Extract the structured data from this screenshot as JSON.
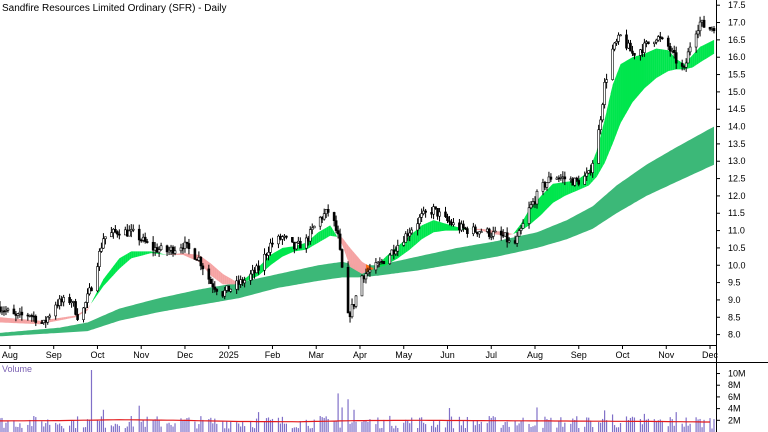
{
  "chart_data": [
    {
      "type": "ohlc",
      "title": "Sandfire Resources Limited Ordinary (SFR) - Daily",
      "y_ticks": [
        "17.5",
        "17.0",
        "16.5",
        "16.0",
        "15.5",
        "15.0",
        "14.5",
        "14.0",
        "13.5",
        "13.0",
        "12.5",
        "12.0",
        "11.5",
        "11.0",
        "10.5",
        "10.0",
        "9.5",
        "9.0",
        "8.5",
        "8.0"
      ],
      "ylim": [
        7.7,
        17.65
      ],
      "x_ticks": [
        "Aug",
        "Sep",
        "Oct",
        "Nov",
        "Dec",
        "2025",
        "Feb",
        "Mar",
        "Apr",
        "May",
        "Jun",
        "Jul",
        "Aug",
        "Sep",
        "Oct",
        "Nov",
        "Dec"
      ],
      "price_path": [
        {
          "d": 0,
          "v": 8.8
        },
        {
          "d": 8,
          "v": 8.5
        },
        {
          "d": 15,
          "v": 8.6
        },
        {
          "d": 22,
          "v": 8.3
        },
        {
          "d": 28,
          "v": 8.9
        },
        {
          "d": 36,
          "v": 9.0
        },
        {
          "d": 40,
          "v": 8.4
        },
        {
          "d": 46,
          "v": 9.4
        },
        {
          "d": 52,
          "v": 10.8
        },
        {
          "d": 60,
          "v": 11.0
        },
        {
          "d": 68,
          "v": 10.9
        },
        {
          "d": 76,
          "v": 10.5
        },
        {
          "d": 84,
          "v": 10.4
        },
        {
          "d": 92,
          "v": 10.6
        },
        {
          "d": 100,
          "v": 10.2
        },
        {
          "d": 106,
          "v": 9.5
        },
        {
          "d": 112,
          "v": 9.2
        },
        {
          "d": 118,
          "v": 9.4
        },
        {
          "d": 124,
          "v": 9.6
        },
        {
          "d": 130,
          "v": 9.9
        },
        {
          "d": 136,
          "v": 10.6
        },
        {
          "d": 142,
          "v": 10.8
        },
        {
          "d": 148,
          "v": 10.5
        },
        {
          "d": 154,
          "v": 10.7
        },
        {
          "d": 160,
          "v": 11.3
        },
        {
          "d": 166,
          "v": 11.6
        },
        {
          "d": 170,
          "v": 10.8
        },
        {
          "d": 175,
          "v": 8.5
        },
        {
          "d": 178,
          "v": 8.9
        },
        {
          "d": 182,
          "v": 9.7
        },
        {
          "d": 188,
          "v": 9.9
        },
        {
          "d": 194,
          "v": 10.2
        },
        {
          "d": 200,
          "v": 10.6
        },
        {
          "d": 206,
          "v": 11.0
        },
        {
          "d": 212,
          "v": 11.4
        },
        {
          "d": 218,
          "v": 11.6
        },
        {
          "d": 224,
          "v": 11.3
        },
        {
          "d": 230,
          "v": 11.1
        },
        {
          "d": 236,
          "v": 11.0
        },
        {
          "d": 242,
          "v": 11.0
        },
        {
          "d": 248,
          "v": 10.9
        },
        {
          "d": 254,
          "v": 10.8
        },
        {
          "d": 258,
          "v": 10.5
        },
        {
          "d": 262,
          "v": 11.0
        },
        {
          "d": 266,
          "v": 11.6
        },
        {
          "d": 272,
          "v": 12.2
        },
        {
          "d": 278,
          "v": 12.6
        },
        {
          "d": 284,
          "v": 12.5
        },
        {
          "d": 290,
          "v": 12.4
        },
        {
          "d": 296,
          "v": 12.6
        },
        {
          "d": 300,
          "v": 13.4
        },
        {
          "d": 304,
          "v": 15.2
        },
        {
          "d": 308,
          "v": 16.2
        },
        {
          "d": 312,
          "v": 16.6
        },
        {
          "d": 318,
          "v": 16.1
        },
        {
          "d": 324,
          "v": 16.3
        },
        {
          "d": 330,
          "v": 16.6
        },
        {
          "d": 336,
          "v": 16.3
        },
        {
          "d": 340,
          "v": 15.9
        },
        {
          "d": 344,
          "v": 15.6
        },
        {
          "d": 348,
          "v": 16.6
        },
        {
          "d": 352,
          "v": 17.0
        },
        {
          "d": 356,
          "v": 16.8
        },
        {
          "d": 359,
          "v": 16.9
        }
      ],
      "bands": [
        {
          "name": "short-term guppy band",
          "points": [
            {
              "d": 0,
              "a": 8.35,
              "b": 8.5
            },
            {
              "d": 20,
              "a": 8.3,
              "b": 8.4
            },
            {
              "d": 38,
              "a": 8.5,
              "b": 8.55
            },
            {
              "d": 44,
              "a": 8.7,
              "b": 8.75
            },
            {
              "d": 52,
              "a": 9.6,
              "b": 9.4
            },
            {
              "d": 60,
              "a": 10.2,
              "b": 9.9
            },
            {
              "d": 66,
              "a": 10.4,
              "b": 10.2
            },
            {
              "d": 76,
              "a": 10.4,
              "b": 10.35
            },
            {
              "d": 84,
              "a": 10.3,
              "b": 10.3
            },
            {
              "d": 92,
              "a": 10.3,
              "b": 10.35
            },
            {
              "d": 100,
              "a": 10.1,
              "b": 10.3
            },
            {
              "d": 106,
              "a": 9.7,
              "b": 10.05
            },
            {
              "d": 112,
              "a": 9.45,
              "b": 9.75
            },
            {
              "d": 118,
              "a": 9.45,
              "b": 9.55
            },
            {
              "d": 124,
              "a": 9.65,
              "b": 9.55
            },
            {
              "d": 130,
              "a": 9.95,
              "b": 9.7
            },
            {
              "d": 136,
              "a": 10.3,
              "b": 10.0
            },
            {
              "d": 142,
              "a": 10.5,
              "b": 10.25
            },
            {
              "d": 148,
              "a": 10.55,
              "b": 10.4
            },
            {
              "d": 154,
              "a": 10.65,
              "b": 10.45
            },
            {
              "d": 160,
              "a": 10.95,
              "b": 10.65
            },
            {
              "d": 166,
              "a": 11.15,
              "b": 10.85
            },
            {
              "d": 172,
              "a": 10.6,
              "b": 10.8
            },
            {
              "d": 176,
              "a": 9.95,
              "b": 10.5
            },
            {
              "d": 182,
              "a": 9.75,
              "b": 10.1
            },
            {
              "d": 188,
              "a": 9.9,
              "b": 9.9
            },
            {
              "d": 194,
              "a": 10.25,
              "b": 10.0
            },
            {
              "d": 200,
              "a": 10.55,
              "b": 10.2
            },
            {
              "d": 206,
              "a": 10.85,
              "b": 10.45
            },
            {
              "d": 212,
              "a": 11.15,
              "b": 10.75
            },
            {
              "d": 218,
              "a": 11.3,
              "b": 10.95
            },
            {
              "d": 224,
              "a": 11.2,
              "b": 11.0
            },
            {
              "d": 230,
              "a": 11.1,
              "b": 11.0
            },
            {
              "d": 236,
              "a": 11.05,
              "b": 11.05
            },
            {
              "d": 242,
              "a": 11.0,
              "b": 11.05
            },
            {
              "d": 248,
              "a": 10.9,
              "b": 11.0
            },
            {
              "d": 254,
              "a": 10.85,
              "b": 10.95
            },
            {
              "d": 258,
              "a": 10.9,
              "b": 10.9
            },
            {
              "d": 262,
              "a": 11.2,
              "b": 11.0
            },
            {
              "d": 266,
              "a": 11.6,
              "b": 11.15
            },
            {
              "d": 272,
              "a": 12.0,
              "b": 11.45
            },
            {
              "d": 278,
              "a": 12.35,
              "b": 11.8
            },
            {
              "d": 284,
              "a": 12.4,
              "b": 12.0
            },
            {
              "d": 290,
              "a": 12.45,
              "b": 12.15
            },
            {
              "d": 296,
              "a": 12.7,
              "b": 12.3
            },
            {
              "d": 300,
              "a": 13.3,
              "b": 12.55
            },
            {
              "d": 304,
              "a": 14.2,
              "b": 12.95
            },
            {
              "d": 308,
              "a": 15.2,
              "b": 13.5
            },
            {
              "d": 312,
              "a": 15.8,
              "b": 14.1
            },
            {
              "d": 318,
              "a": 16.0,
              "b": 14.7
            },
            {
              "d": 324,
              "a": 16.1,
              "b": 15.1
            },
            {
              "d": 330,
              "a": 16.25,
              "b": 15.4
            },
            {
              "d": 336,
              "a": 16.2,
              "b": 15.6
            },
            {
              "d": 340,
              "a": 15.95,
              "b": 15.65
            },
            {
              "d": 344,
              "a": 15.8,
              "b": 15.65
            },
            {
              "d": 348,
              "a": 16.05,
              "b": 15.7
            },
            {
              "d": 352,
              "a": 16.3,
              "b": 15.85
            },
            {
              "d": 359,
              "a": 16.5,
              "b": 16.1
            }
          ],
          "colors": {
            "up": "#00e64d",
            "down": "#f5a3a3",
            "up_alt": "#000000",
            "down_alt": "#ff6a13"
          }
        },
        {
          "name": "long-term guppy band",
          "points": [
            {
              "d": 0,
              "a": 8.05,
              "b": 7.95
            },
            {
              "d": 30,
              "a": 8.2,
              "b": 8.05
            },
            {
              "d": 44,
              "a": 8.35,
              "b": 8.1
            },
            {
              "d": 60,
              "a": 8.75,
              "b": 8.4
            },
            {
              "d": 80,
              "a": 9.05,
              "b": 8.65
            },
            {
              "d": 100,
              "a": 9.3,
              "b": 8.85
            },
            {
              "d": 120,
              "a": 9.5,
              "b": 9.05
            },
            {
              "d": 140,
              "a": 9.75,
              "b": 9.35
            },
            {
              "d": 160,
              "a": 10.0,
              "b": 9.55
            },
            {
              "d": 172,
              "a": 10.1,
              "b": 9.65
            },
            {
              "d": 180,
              "a": 10.0,
              "b": 9.65
            },
            {
              "d": 190,
              "a": 10.0,
              "b": 9.7
            },
            {
              "d": 210,
              "a": 10.25,
              "b": 9.85
            },
            {
              "d": 230,
              "a": 10.5,
              "b": 10.05
            },
            {
              "d": 250,
              "a": 10.7,
              "b": 10.25
            },
            {
              "d": 270,
              "a": 10.95,
              "b": 10.5
            },
            {
              "d": 285,
              "a": 11.3,
              "b": 10.75
            },
            {
              "d": 298,
              "a": 11.7,
              "b": 11.05
            },
            {
              "d": 310,
              "a": 12.3,
              "b": 11.5
            },
            {
              "d": 325,
              "a": 12.9,
              "b": 12.0
            },
            {
              "d": 340,
              "a": 13.4,
              "b": 12.4
            },
            {
              "d": 359,
              "a": 14.0,
              "b": 12.9
            }
          ],
          "color": "#3cb878"
        }
      ]
    },
    {
      "type": "bar",
      "title": "Volume",
      "y_ticks": [
        "10M",
        "8M",
        "6M",
        "4M",
        "2M"
      ],
      "ylim": [
        0,
        11.8
      ],
      "avg_line_color": "#e31a1c",
      "bar_color": "#8070c8",
      "avg_path": [
        {
          "d": 0,
          "v": 1.9
        },
        {
          "d": 30,
          "v": 1.95
        },
        {
          "d": 60,
          "v": 2.1
        },
        {
          "d": 90,
          "v": 2.0
        },
        {
          "d": 120,
          "v": 1.8
        },
        {
          "d": 150,
          "v": 1.75
        },
        {
          "d": 180,
          "v": 1.95
        },
        {
          "d": 210,
          "v": 2.0
        },
        {
          "d": 240,
          "v": 1.95
        },
        {
          "d": 270,
          "v": 1.9
        },
        {
          "d": 300,
          "v": 1.85
        },
        {
          "d": 330,
          "v": 1.8
        },
        {
          "d": 359,
          "v": 1.7
        }
      ],
      "spikes": [
        {
          "d": 46,
          "v": 10.6
        },
        {
          "d": 48,
          "v": 4.4
        },
        {
          "d": 52,
          "v": 3.8
        },
        {
          "d": 70,
          "v": 4.5
        },
        {
          "d": 130,
          "v": 3.4
        },
        {
          "d": 160,
          "v": 3.3
        },
        {
          "d": 170,
          "v": 6.6
        },
        {
          "d": 172,
          "v": 4.2
        },
        {
          "d": 175,
          "v": 5.6
        },
        {
          "d": 178,
          "v": 3.8
        },
        {
          "d": 216,
          "v": 4.2
        },
        {
          "d": 226,
          "v": 4.1
        },
        {
          "d": 264,
          "v": 6.1
        },
        {
          "d": 270,
          "v": 4.2
        },
        {
          "d": 300,
          "v": 3.6
        },
        {
          "d": 304,
          "v": 3.7
        },
        {
          "d": 308,
          "v": 3.0
        },
        {
          "d": 324,
          "v": 3.1
        },
        {
          "d": 340,
          "v": 3.4
        },
        {
          "d": 348,
          "v": 3.3
        }
      ]
    }
  ]
}
